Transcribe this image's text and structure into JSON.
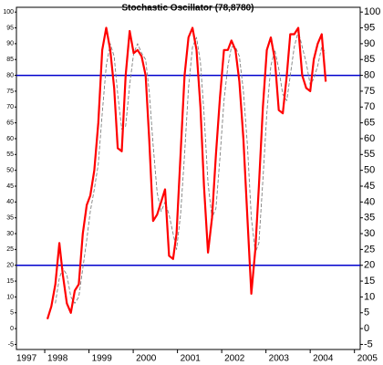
{
  "chart_data": {
    "type": "line",
    "title": "Stochastic Oscillator (78,8780)",
    "x": [
      1998.06,
      1998.15,
      1998.24,
      1998.33,
      1998.41,
      1998.5,
      1998.59,
      1998.68,
      1998.77,
      1998.86,
      1998.95,
      1999.03,
      1999.12,
      1999.21,
      1999.3,
      1999.39,
      1999.48,
      1999.57,
      1999.65,
      1999.74,
      1999.83,
      1999.92,
      2000.01,
      2000.1,
      2000.19,
      2000.28,
      2000.36,
      2000.45,
      2000.54,
      2000.63,
      2000.72,
      2000.81,
      2000.9,
      2000.98,
      2001.07,
      2001.16,
      2001.25,
      2001.34,
      2001.43,
      2001.52,
      2001.6,
      2001.69,
      2001.78,
      2001.87,
      2001.96,
      2002.05,
      2002.14,
      2002.22,
      2002.31,
      2002.4,
      2002.49,
      2002.58,
      2002.67,
      2002.76,
      2002.84,
      2002.93,
      2003.02,
      2003.11,
      2003.2,
      2003.29,
      2003.38,
      2003.47,
      2003.55,
      2003.64,
      2003.73,
      2003.82,
      2003.91,
      2004.0,
      2004.08,
      2004.17,
      2004.26,
      2004.35
    ],
    "series": [
      {
        "color": "#ff0000",
        "dashed": false,
        "width": 2.2,
        "values": [
          3,
          7,
          14,
          27,
          17,
          8,
          5,
          12,
          14,
          30,
          39,
          42,
          50,
          65,
          88,
          95,
          88,
          76,
          57,
          56,
          80,
          94,
          87,
          88,
          86,
          80,
          60,
          34,
          36,
          40,
          44,
          23,
          22,
          30,
          55,
          80,
          92,
          95,
          88,
          70,
          45,
          24,
          35,
          55,
          73,
          88,
          88,
          91,
          88,
          78,
          60,
          35,
          11,
          25,
          45,
          70,
          88,
          92,
          85,
          69,
          68,
          80,
          93,
          93,
          95,
          80,
          76,
          75,
          85,
          90,
          93,
          78
        ]
      },
      {
        "color": "#808080",
        "dashed": true,
        "width": 0.9,
        "values": [
          null,
          null,
          8,
          16,
          19,
          17,
          10,
          8,
          10,
          19,
          28,
          37,
          44,
          52,
          68,
          83,
          90,
          86,
          74,
          63,
          64,
          77,
          87,
          90,
          87,
          85,
          75,
          58,
          43,
          37,
          40,
          36,
          30,
          25,
          36,
          55,
          76,
          89,
          92,
          84,
          68,
          46,
          35,
          38,
          54,
          72,
          83,
          89,
          89,
          86,
          75,
          58,
          35,
          24,
          27,
          47,
          68,
          83,
          88,
          82,
          74,
          72,
          80,
          89,
          94,
          89,
          84,
          77,
          79,
          83,
          89,
          87
        ]
      }
    ],
    "levels": [
      80,
      20
    ],
    "level_color": "#0000cc",
    "xlim": [
      1997.36,
      2005.13
    ],
    "xticks": [
      1997,
      1998,
      1999,
      2000,
      2001,
      2002,
      2003,
      2004,
      2005
    ],
    "ylim": [
      -6.6,
      101.5
    ],
    "yticks": [
      -5,
      0,
      5,
      10,
      15,
      20,
      25,
      30,
      35,
      40,
      45,
      50,
      55,
      60,
      65,
      70,
      75,
      80,
      85,
      90,
      95,
      100
    ]
  }
}
